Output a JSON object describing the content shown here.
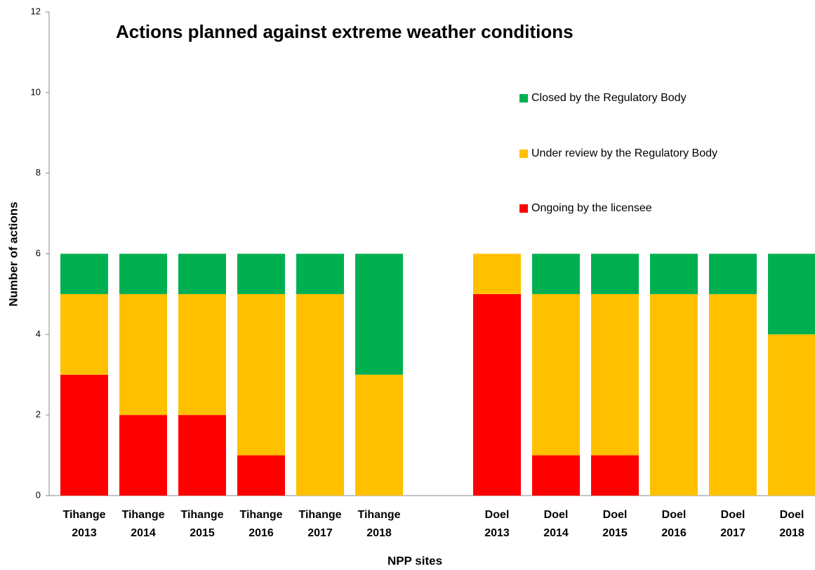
{
  "chart_data": {
    "type": "stacked_bar",
    "title": "Actions planned against extreme weather conditions",
    "x_label": "NPP sites",
    "y_label": "Number of actions",
    "categories": [
      "Tihange 2013",
      "Tihange 2014",
      "Tihange 2015",
      "Tihange 2016",
      "Tihange 2017",
      "Tihange 2018",
      null,
      "Doel 2013",
      "Doel 2014",
      "Doel 2015",
      "Doel 2016",
      "Doel 2017",
      "Doel 2018"
    ],
    "series": [
      {
        "name": "Ongoing by the licensee",
        "color": "#ff0000",
        "values": [
          3,
          2,
          2,
          1,
          0,
          0,
          null,
          5,
          1,
          1,
          0,
          0,
          0
        ]
      },
      {
        "name": "Under review by the Regulatory Body",
        "color": "#ffc000",
        "values": [
          2,
          3,
          3,
          4,
          5,
          3,
          null,
          1,
          4,
          4,
          5,
          5,
          4
        ]
      },
      {
        "name": "Closed by the Regulatory Body",
        "color": "#00b050",
        "values": [
          1,
          1,
          1,
          1,
          1,
          3,
          null,
          0,
          1,
          1,
          1,
          1,
          2
        ]
      }
    ],
    "ylim": [
      0,
      12
    ],
    "yticks": [
      0,
      2,
      4,
      6,
      8,
      10,
      12
    ],
    "grid": false,
    "legend": "upper right"
  }
}
